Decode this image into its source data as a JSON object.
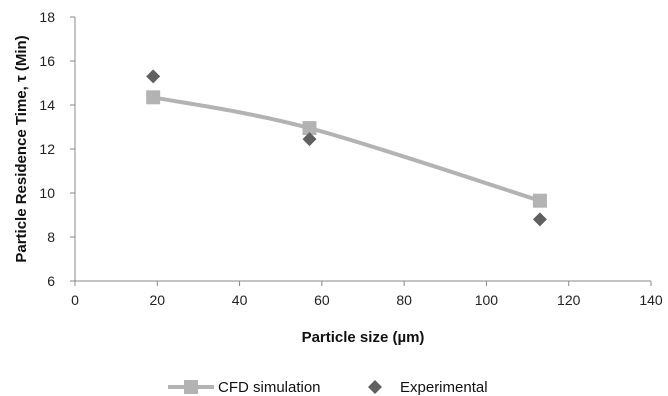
{
  "chart_data": {
    "type": "scatter",
    "title": "",
    "xlabel": "Particle size (µm)",
    "ylabel": "Particle Residence Time, τ (Min)",
    "xlim": [
      0,
      140
    ],
    "ylim": [
      6,
      18
    ],
    "x_ticks": [
      0,
      20,
      40,
      60,
      80,
      100,
      120,
      140
    ],
    "y_ticks": [
      6,
      8,
      10,
      12,
      14,
      16,
      18
    ],
    "grid": false,
    "legend_position": "bottom",
    "series": [
      {
        "name": "CFD simulation",
        "marker": "square",
        "line": "smooth",
        "color": "#b3b3b3",
        "x": [
          19,
          57,
          113
        ],
        "y": [
          14.35,
          12.95,
          9.65
        ]
      },
      {
        "name": "Experimental",
        "marker": "diamond",
        "line": "none",
        "color": "#606060",
        "x": [
          19,
          57,
          113
        ],
        "y": [
          15.3,
          12.45,
          8.8
        ]
      }
    ]
  }
}
